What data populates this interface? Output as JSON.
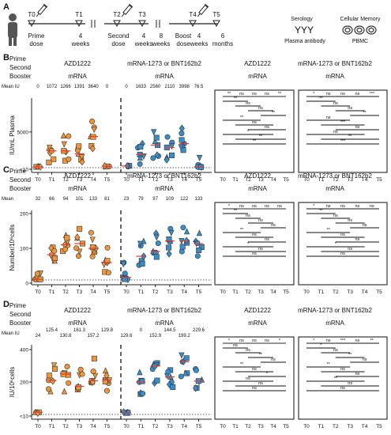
{
  "timeline": {
    "panel_label": "A",
    "points": [
      "T0",
      "T1",
      "T2",
      "T3",
      "T4",
      "T5"
    ],
    "phase_labels": [
      [
        "Prime",
        "dose"
      ],
      [
        "Second",
        "dose"
      ],
      [
        "Boost",
        "dose"
      ]
    ],
    "interval_labels": [
      [
        "4",
        "weeks"
      ],
      [
        "4",
        "weeks"
      ],
      [
        "8",
        "weeks"
      ],
      [
        "4",
        "weeks"
      ],
      [
        "6",
        "months"
      ]
    ],
    "serology_title": "Serology",
    "serology_sub": "Plasma antibody",
    "cellular_title": "Cellular Memory",
    "cellular_sub": "PBMC"
  },
  "row_headers": {
    "prime": "Prime",
    "second": "Second",
    "booster": "Booster"
  },
  "groups": [
    {
      "prime": "AZD1222",
      "booster": "mRNA"
    },
    {
      "prime": "mRNA-1273 or BNT162b2",
      "booster": "mRNA"
    },
    {
      "prime": "AZD1222",
      "booster": "mRNA"
    },
    {
      "prime": "mRNA-1273 or BNT162b2",
      "booster": "mRNA"
    }
  ],
  "time_ticks": [
    "T0",
    "T1",
    "T2",
    "T3",
    "T4",
    "T5"
  ],
  "colors": {
    "azd": "#f0963a",
    "mrna": "#3a8dc8",
    "median": "#e53935",
    "sig_line": "#111"
  },
  "panels": [
    {
      "label": "B",
      "mean_label": "Mean IU",
      "means_left": [
        "0",
        "1072",
        "1266",
        "1391",
        "3640",
        "0"
      ],
      "means_right": [
        "0",
        "1633",
        "2560",
        "2110",
        "3998",
        "76.5"
      ],
      "ylabel": "IU/mL Plasma",
      "yticks": [
        "<10",
        "5000"
      ],
      "sig_left": [
        "**",
        "ns",
        "ns",
        "ns",
        "**",
        "**",
        "ns",
        "ns",
        "**",
        "**",
        "ns",
        "ns",
        "*",
        "**",
        "**"
      ],
      "sig_right": [
        "*",
        "ns",
        "ns",
        "ns",
        "***",
        "**",
        "ns",
        "ns",
        "**",
        "ns",
        "***",
        "ns",
        "ns",
        "**",
        "***"
      ]
    },
    {
      "label": "C",
      "mean_label": "Mean",
      "means_left": [
        "32",
        "66",
        "94",
        "101",
        "133",
        "81"
      ],
      "means_right": [
        "23",
        "79",
        "97",
        "109",
        "122",
        "133"
      ],
      "ylabel": "Number/10⁶cells",
      "yticks": [
        "0",
        "100",
        "200"
      ],
      "sig_left": [
        "*",
        "ns",
        "ns",
        "ns",
        "ns",
        "**",
        "ns",
        "ns",
        "ns",
        "**",
        "ns",
        "ns",
        "*",
        "ns",
        "ns"
      ],
      "sig_right": [
        "*",
        "ns",
        "ns",
        "ns",
        "ns",
        "**",
        "ns",
        "ns",
        "ns",
        "**",
        "ns",
        "ns",
        "*",
        "ns",
        "ns"
      ]
    },
    {
      "label": "D",
      "mean_label": "Mean IU",
      "means_left_top": [
        "125.4",
        "161.3",
        "129.8"
      ],
      "means_left_bottom": [
        "24",
        "130.8",
        "157.2"
      ],
      "means_right_top": [
        "0",
        "144.5",
        "229.6"
      ],
      "means_right_bottom": [
        "129.6",
        "152.9",
        "199.2"
      ],
      "ylabel": "IU/10⁶cells",
      "yticks": [
        "<10",
        "200",
        "400"
      ],
      "sig_left": [
        "*",
        "ns",
        "ns",
        "ns",
        "*",
        "ns",
        "ns",
        "**",
        "ns",
        "**",
        "ns",
        "*",
        "ns",
        "ns",
        "ns"
      ],
      "sig_right": [
        "*",
        "ns",
        "***",
        "ns",
        "**",
        "*",
        "ns",
        "**",
        "ns",
        "**",
        "ns",
        "ns",
        "**",
        "ns",
        "ns"
      ]
    }
  ]
}
